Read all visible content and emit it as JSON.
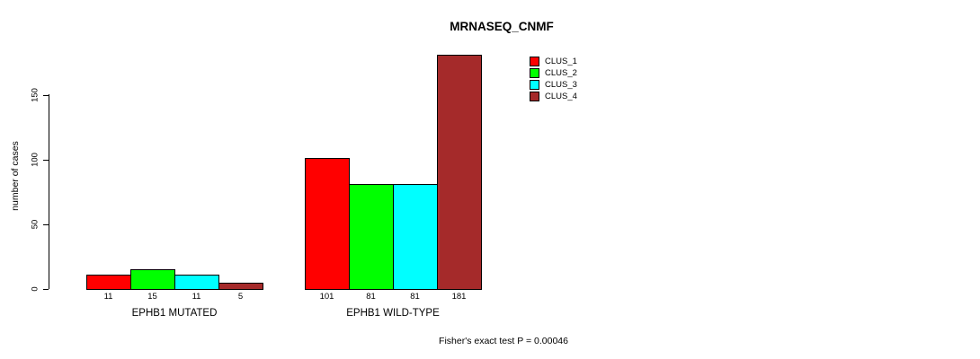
{
  "title": "MRNASEQ_CNMF",
  "footer": "Fisher's exact test P = 0.00046",
  "y_axis": {
    "label": "number of cases",
    "ticks": [
      0,
      50,
      100,
      150
    ]
  },
  "legend": {
    "items": [
      {
        "label": "CLUS_1",
        "color": "#ff0000"
      },
      {
        "label": "CLUS_2",
        "color": "#00ff00"
      },
      {
        "label": "CLUS_3",
        "color": "#00ffff"
      },
      {
        "label": "CLUS_4",
        "color": "#a52a2a"
      }
    ]
  },
  "chart_data": {
    "type": "bar",
    "title": "MRNASEQ_CNMF",
    "xlabel": "",
    "ylabel": "number of cases",
    "ylim": [
      0,
      181
    ],
    "yticks": [
      0,
      50,
      100,
      150
    ],
    "grid": false,
    "legend_position": "top-right",
    "categories": [
      "EPHB1 MUTATED",
      "EPHB1 WILD-TYPE"
    ],
    "series": [
      {
        "name": "CLUS_1",
        "color": "#ff0000",
        "values": [
          11,
          101
        ]
      },
      {
        "name": "CLUS_2",
        "color": "#00ff00",
        "values": [
          15,
          81
        ]
      },
      {
        "name": "CLUS_3",
        "color": "#00ffff",
        "values": [
          11,
          81
        ]
      },
      {
        "name": "CLUS_4",
        "color": "#a52a2a",
        "values": [
          5,
          181
        ]
      }
    ],
    "bar_value_labels": [
      [
        11,
        15,
        11,
        5
      ],
      [
        101,
        81,
        81,
        181
      ]
    ],
    "annotation": "Fisher's exact test P = 0.00046"
  }
}
